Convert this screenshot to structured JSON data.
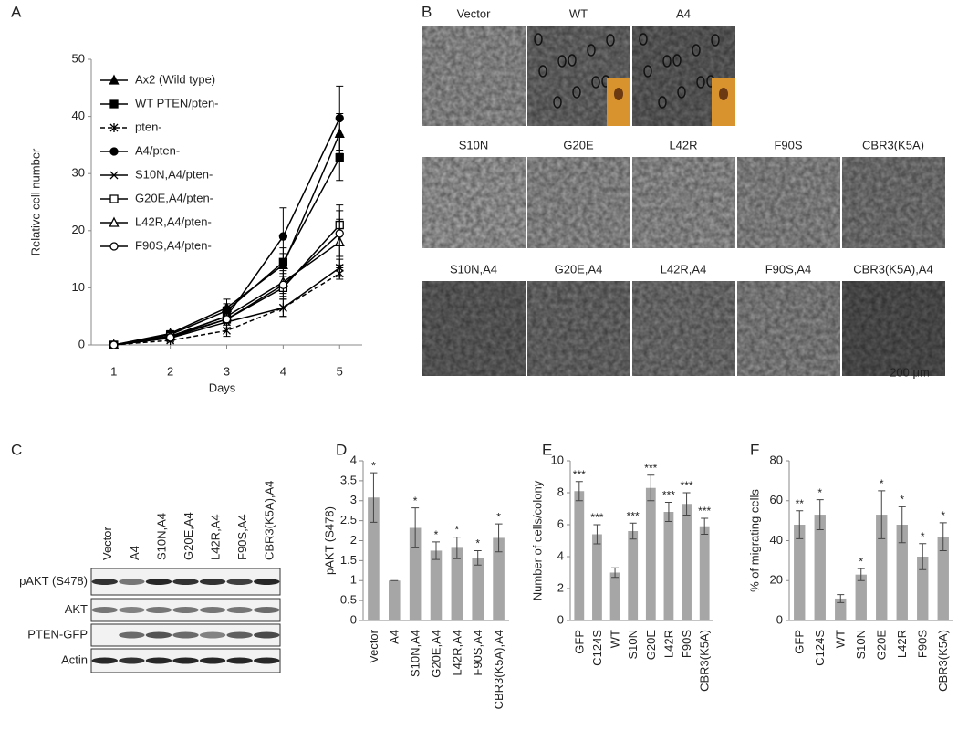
{
  "chart_data": [
    {
      "type": "line",
      "panel_label": "A",
      "x_label": "Days",
      "y_label": "Relative cell number",
      "x": [
        1,
        2,
        3,
        4,
        5
      ],
      "xlim": [
        0.6,
        5.4
      ],
      "xticks": [
        1,
        2,
        3,
        4,
        5
      ],
      "ylim": [
        0,
        50
      ],
      "yticks": [
        0,
        10,
        20,
        30,
        40,
        50
      ],
      "series": [
        {
          "name": "Ax2 (Wild type)",
          "color": "#000000",
          "marker": "triangle",
          "marker_fill": "#000000",
          "dashed": false,
          "values": [
            0,
            2,
            6.5,
            14,
            37
          ],
          "errors": [
            0.3,
            0.5,
            1.5,
            2,
            3.5
          ]
        },
        {
          "name": "WT PTEN/pten-",
          "color": "#000000",
          "marker": "square",
          "marker_fill": "#000000",
          "dashed": false,
          "values": [
            0,
            1.8,
            6,
            14.5,
            32.8
          ],
          "errors": [
            0.3,
            0.5,
            1.2,
            2.5,
            4
          ]
        },
        {
          "name": "pten-",
          "color": "#000000",
          "marker": "asterisk",
          "marker_fill": "none",
          "dashed": true,
          "values": [
            0,
            0.8,
            2.5,
            6.5,
            12.5
          ],
          "errors": [
            0.2,
            0.3,
            1,
            1.5,
            1
          ]
        },
        {
          "name": "A4/pten-",
          "color": "#000000",
          "marker": "circle",
          "marker_fill": "#000000",
          "dashed": false,
          "values": [
            0,
            1.5,
            5,
            19,
            39.7
          ],
          "errors": [
            0.3,
            0.4,
            1.2,
            5,
            5.6
          ]
        },
        {
          "name": "S10N,A4/pten-",
          "color": "#000000",
          "marker": "x",
          "marker_fill": "none",
          "dashed": false,
          "values": [
            0,
            1.2,
            4,
            6.5,
            13.5
          ],
          "errors": [
            0.2,
            0.3,
            1,
            1.5,
            1.5
          ]
        },
        {
          "name": "G20E,A4/pten-",
          "color": "#000000",
          "marker": "square",
          "marker_fill": "#ffffff",
          "dashed": false,
          "values": [
            0,
            1.5,
            4.5,
            10,
            21
          ],
          "errors": [
            0.2,
            0.4,
            1,
            2,
            3.5
          ]
        },
        {
          "name": "L42R,A4/pten-",
          "color": "#000000",
          "marker": "triangle",
          "marker_fill": "#ffffff",
          "dashed": false,
          "values": [
            0,
            1.5,
            5,
            11,
            18
          ],
          "errors": [
            0.2,
            0.4,
            1,
            2,
            4
          ]
        },
        {
          "name": "F90S,A4/pten-",
          "color": "#000000",
          "marker": "circle",
          "marker_fill": "#ffffff",
          "dashed": false,
          "values": [
            0,
            1.3,
            4.5,
            10.5,
            19.5
          ],
          "errors": [
            0.2,
            0.4,
            1,
            2,
            4
          ]
        }
      ]
    },
    {
      "type": "bar",
      "panel_label": "D",
      "y_label": "pAKT (S478)",
      "color": "#a6a6a6",
      "categories": [
        "Vector",
        "A4",
        "S10N,A4",
        "G20E,A4",
        "L42R,A4",
        "F90S,A4",
        "CBR3(K5A),A4"
      ],
      "values": [
        3.08,
        1.0,
        2.32,
        1.75,
        1.82,
        1.57,
        2.07
      ],
      "errors": [
        0.62,
        0,
        0.5,
        0.22,
        0.27,
        0.18,
        0.35
      ],
      "significance": [
        "*",
        null,
        "*",
        "*",
        "*",
        "*",
        "*"
      ],
      "ylim": [
        0,
        4
      ],
      "yticks": [
        0,
        0.5,
        1,
        1.5,
        2,
        2.5,
        3,
        3.5,
        4
      ]
    },
    {
      "type": "bar",
      "panel_label": "E",
      "y_label": "Number of cells/colony",
      "color": "#a6a6a6",
      "categories": [
        "GFP",
        "C124S",
        "WT",
        "S10N",
        "G20E",
        "L42R",
        "F90S",
        "CBR3(K5A)"
      ],
      "values": [
        8.1,
        5.4,
        3.0,
        5.6,
        8.3,
        6.8,
        7.3,
        5.9
      ],
      "errors": [
        0.6,
        0.6,
        0.3,
        0.5,
        0.8,
        0.6,
        0.7,
        0.5
      ],
      "significance": [
        "***",
        "***",
        null,
        "***",
        "***",
        "***",
        "***",
        "***"
      ],
      "ylim": [
        0,
        10
      ],
      "yticks": [
        0,
        2,
        4,
        6,
        8,
        10
      ]
    },
    {
      "type": "bar",
      "panel_label": "F",
      "y_label": "% of migrating cells",
      "color": "#a6a6a6",
      "categories": [
        "GFP",
        "C124S",
        "WT",
        "S10N",
        "G20E",
        "L42R",
        "F90S",
        "CBR3(K5A)"
      ],
      "values": [
        48,
        53,
        11,
        23,
        53,
        48,
        32,
        42
      ],
      "errors": [
        7,
        7.5,
        2,
        3,
        12,
        9,
        6.5,
        7
      ],
      "significance": [
        "**",
        "*",
        null,
        "*",
        "*",
        "*",
        "*",
        "*"
      ],
      "ylim": [
        0,
        80
      ],
      "yticks": [
        0,
        20,
        40,
        60,
        80
      ]
    }
  ],
  "panel_b": {
    "panel_label": "B",
    "rows": [
      [
        "Vector",
        "WT",
        "A4"
      ],
      [
        "S10N",
        "G20E",
        "L42R",
        "F90S",
        "CBR3(K5A)"
      ],
      [
        "S10N,A4",
        "G20E,A4",
        "L42R,A4",
        "F90S,A4",
        "CBR3(K5A),A4"
      ]
    ],
    "scale_bar": "200 μm"
  },
  "panel_c": {
    "panel_label": "C",
    "lanes": [
      "Vector",
      "A4",
      "S10N,A4",
      "G20E,A4",
      "L42R,A4",
      "F90S,A4",
      "CBR3(K5A),A4"
    ],
    "rows": [
      "pAKT (S478)",
      "AKT",
      "PTEN-GFP",
      "Actin"
    ]
  }
}
